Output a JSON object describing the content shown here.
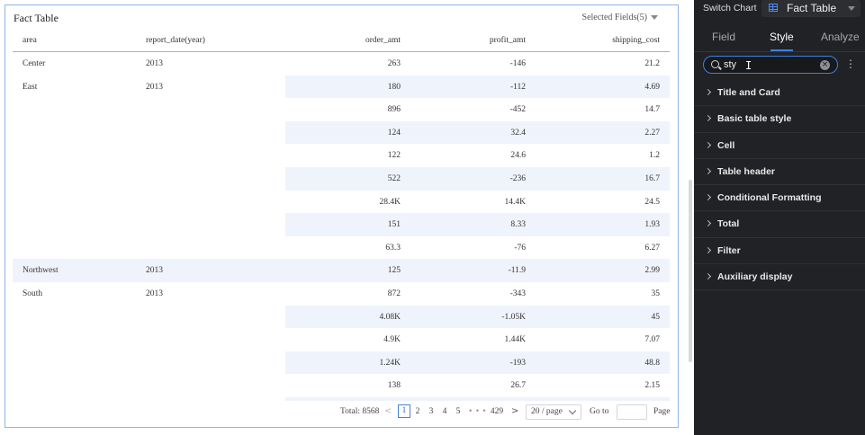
{
  "card": {
    "title": "Fact Table",
    "selected_fields": "Selected Fields(5)"
  },
  "table": {
    "columns": [
      "area",
      "report_date(year)",
      "order_amt",
      "profit_amt",
      "shipping_cost"
    ],
    "rows": [
      {
        "area": "Center",
        "date": "2013",
        "order": "263",
        "profit": "-146",
        "ship": "21.2",
        "stripe": "none"
      },
      {
        "area": "East",
        "date": "2013",
        "order": "180",
        "profit": "-112",
        "ship": "4.69",
        "stripe": "partial"
      },
      {
        "area": "",
        "date": "",
        "order": "896",
        "profit": "-452",
        "ship": "14.7",
        "stripe": "none"
      },
      {
        "area": "",
        "date": "",
        "order": "124",
        "profit": "32.4",
        "ship": "2.27",
        "stripe": "partial"
      },
      {
        "area": "",
        "date": "",
        "order": "122",
        "profit": "24.6",
        "ship": "1.2",
        "stripe": "none"
      },
      {
        "area": "",
        "date": "",
        "order": "522",
        "profit": "-236",
        "ship": "16.7",
        "stripe": "partial"
      },
      {
        "area": "",
        "date": "",
        "order": "28.4K",
        "profit": "14.4K",
        "ship": "24.5",
        "stripe": "none"
      },
      {
        "area": "",
        "date": "",
        "order": "151",
        "profit": "8.33",
        "ship": "1.93",
        "stripe": "partial"
      },
      {
        "area": "",
        "date": "",
        "order": "63.3",
        "profit": "-76",
        "ship": "6.27",
        "stripe": "none"
      },
      {
        "area": "Northwest",
        "date": "2013",
        "order": "125",
        "profit": "-11.9",
        "ship": "2.99",
        "stripe": "full"
      },
      {
        "area": "South",
        "date": "2013",
        "order": "872",
        "profit": "-343",
        "ship": "35",
        "stripe": "none"
      },
      {
        "area": "",
        "date": "",
        "order": "4.08K",
        "profit": "-1.05K",
        "ship": "45",
        "stripe": "partial"
      },
      {
        "area": "",
        "date": "",
        "order": "4.9K",
        "profit": "1.44K",
        "ship": "7.07",
        "stripe": "none"
      },
      {
        "area": "",
        "date": "",
        "order": "1.24K",
        "profit": "-193",
        "ship": "48.8",
        "stripe": "partial"
      },
      {
        "area": "",
        "date": "",
        "order": "138",
        "profit": "26.7",
        "ship": "2.15",
        "stripe": "none"
      },
      {
        "area": "",
        "date": "",
        "order": "",
        "profit": "",
        "ship": "",
        "stripe": "partial"
      }
    ]
  },
  "pager": {
    "total": "Total: 8568",
    "prev": "<",
    "pages": [
      "1",
      "2",
      "3",
      "4",
      "5"
    ],
    "active_page": "1",
    "ellipsis": "• • •",
    "last_page": "429",
    "next": ">",
    "page_size": "20 / page",
    "goto_label": "Go to",
    "goto_value": "",
    "page_suffix": "Page"
  },
  "panel": {
    "switch_chart_label": "Switch Chart",
    "chart_type": "Fact Table",
    "tabs": [
      "Field",
      "Style",
      "Analyze"
    ],
    "active_tab": "Style",
    "search_value": "sty",
    "clear_glyph": "×",
    "more_glyph": "⋮",
    "sections": [
      "Title and Card",
      "Basic table style",
      "Cell",
      "Table header",
      "Conditional Formatting",
      "Total",
      "Filter",
      "Auxiliary display"
    ]
  },
  "colors": {
    "accent": "#3d7fe6",
    "panel_bg": "#212225",
    "row_stripe": "#eff3fb",
    "card_border": "#8fb4e6"
  }
}
